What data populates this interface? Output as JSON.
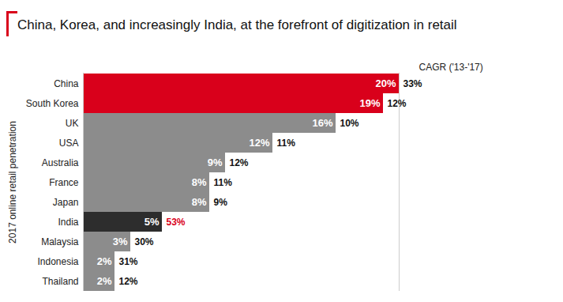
{
  "chart_data": {
    "type": "bar",
    "orientation": "horizontal",
    "title": "China, Korea, and increasingly India, at the forefront of digitization in retail",
    "ylabel": "2017 online retail penetration",
    "categories": [
      "China",
      "South Korea",
      "UK",
      "USA",
      "Australia",
      "France",
      "Japan",
      "India",
      "Malaysia",
      "Indonesia",
      "Thailand"
    ],
    "values": [
      20,
      19,
      16,
      12,
      9,
      8,
      8,
      5,
      3,
      2,
      2
    ],
    "value_labels": [
      "20%",
      "19%",
      "16%",
      "12%",
      "9%",
      "8%",
      "8%",
      "5%",
      "3%",
      "2%",
      "2%"
    ],
    "colors": [
      "#d9001b",
      "#d9001b",
      "#8c8c8c",
      "#8c8c8c",
      "#8c8c8c",
      "#8c8c8c",
      "#8c8c8c",
      "#2d2d2d",
      "#8c8c8c",
      "#8c8c8c",
      "#8c8c8c"
    ],
    "cagr": {
      "label": "CAGR ('13-'17)",
      "values": [
        33,
        12,
        10,
        11,
        12,
        11,
        9,
        53,
        30,
        31,
        12
      ],
      "value_labels": [
        "33%",
        "12%",
        "10%",
        "11%",
        "12%",
        "11%",
        "9%",
        "53%",
        "30%",
        "31%",
        "12%"
      ],
      "colors": [
        "#111111",
        "#111111",
        "#111111",
        "#111111",
        "#111111",
        "#111111",
        "#111111",
        "#d9001b",
        "#111111",
        "#111111",
        "#111111"
      ]
    },
    "xlim": [
      0,
      20
    ],
    "xticks": [],
    "data_labels": true,
    "tick_labels": "y"
  }
}
